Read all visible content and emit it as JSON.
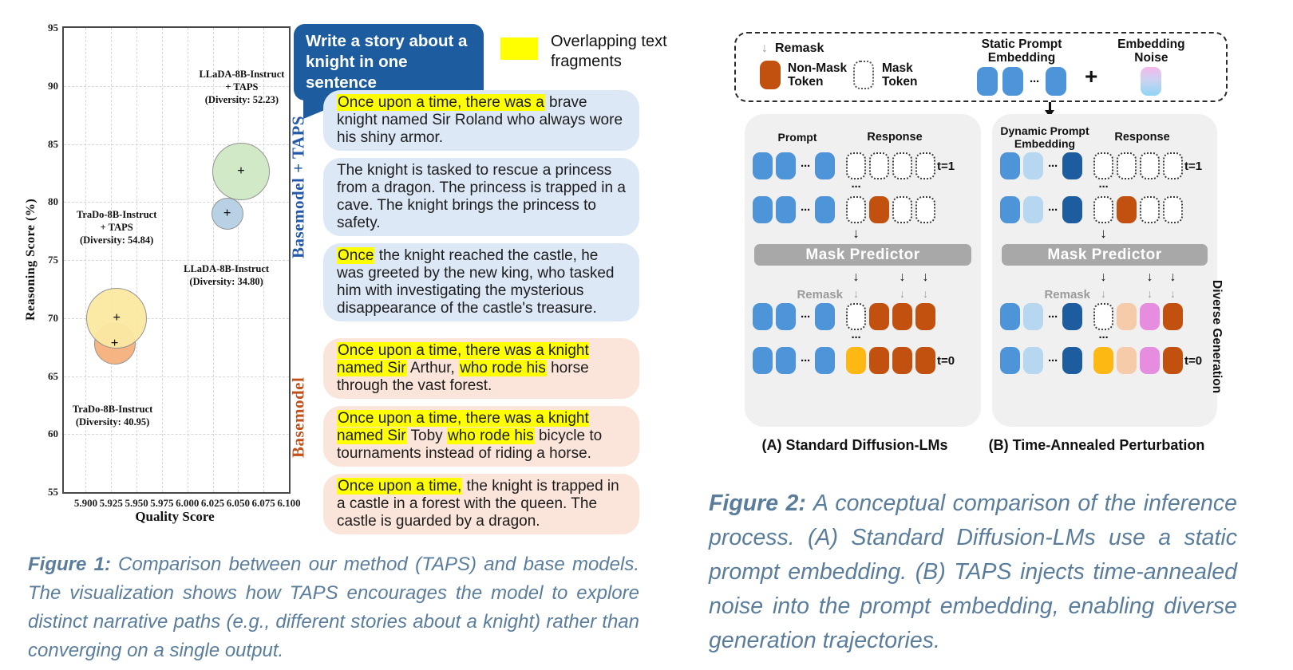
{
  "chart_data": {
    "type": "scatter",
    "title": "",
    "xlabel": "Quality Score",
    "ylabel": "Reasoning Score (%)",
    "xlim": [
      5.8784,
      6.1
    ],
    "ylim": [
      55,
      95
    ],
    "xticks": [
      "5.900",
      "5.925",
      "5.950",
      "5.975",
      "6.000",
      "6.025",
      "6.050",
      "6.075",
      "6.100"
    ],
    "yticks": [
      "55",
      "60",
      "65",
      "70",
      "75",
      "80",
      "85",
      "90",
      "95"
    ],
    "grid": true,
    "marker": "+",
    "points": [
      {
        "name": "TraDo-8B-Instruct",
        "x": 5.9284,
        "y": 67.8,
        "diversity": 40.95,
        "radius_px": 25,
        "fill": "#f5b07c",
        "label": [
          "TraDo-8B-Instruct",
          "(Diversity: 40.95)"
        ],
        "label_at": [
          5.9264,
          61.6
        ]
      },
      {
        "name": "TraDo-8B-Instruct + TAPS",
        "x": 5.9304,
        "y": 70.0,
        "diversity": 54.84,
        "radius_px": 37,
        "fill": "#fbe9a2",
        "label": [
          "TraDo-8B-Instruct",
          "+ TAPS",
          "(Diversity: 54.84)"
        ],
        "label_at": [
          5.9304,
          77.8
        ]
      },
      {
        "name": "LLaDA-8B-Instruct",
        "x": 6.0392,
        "y": 79.0,
        "diversity": 34.8,
        "radius_px": 19,
        "fill": "#b6cfe4",
        "label": [
          "LLaDA-8B-Instruct",
          "(Diversity: 34.80)"
        ],
        "label_at": [
          6.0384,
          73.7
        ]
      },
      {
        "name": "LLaDA-8B-Instruct + TAPS",
        "x": 6.0528,
        "y": 82.6,
        "diversity": 52.23,
        "radius_px": 35,
        "fill": "#cfe8c3",
        "label": [
          "LLaDA-8B-Instruct",
          "+ TAPS",
          "(Diversity: 52.23)"
        ],
        "label_at": [
          6.0536,
          89.9
        ]
      }
    ]
  },
  "figure1": {
    "prompt_bubble": "Write a story about a knight in one sentence",
    "prompt_bubble_color": "#1d5c9e",
    "highlight_legend": "Overlapping text fragments",
    "highlight_color": "#ffff00",
    "groups": [
      {
        "label": "Basemodel + TAPS",
        "label_color": "#2458a8",
        "bubble_bg": "#dce8f6",
        "bubbles": [
          {
            "segments": [
              {
                "text": "Once upon a time, there was a",
                "hl": true
              },
              {
                "text": " brave knight named Sir Roland who always wore his shiny armor.",
                "hl": false
              }
            ]
          },
          {
            "segments": [
              {
                "text": "The knight is tasked to rescue a princess from a dragon. The princess is trapped in a cave. The knight brings the princess to safety.",
                "hl": false
              }
            ]
          },
          {
            "segments": [
              {
                "text": "Once",
                "hl": true
              },
              {
                "text": " the knight reached the castle, he was greeted by the new king, who tasked him with investigating the mysterious disappearance of the castle's treasure.",
                "hl": false
              }
            ]
          }
        ]
      },
      {
        "label": "Basemodel",
        "label_color": "#c0511b",
        "bubble_bg": "#fbe4d9",
        "bubbles": [
          {
            "segments": [
              {
                "text": "Once upon a time, there was a knight named Sir",
                "hl": true
              },
              {
                "text": " Arthur, ",
                "hl": false
              },
              {
                "text": "who rode his",
                "hl": true
              },
              {
                "text": " horse through the vast forest.",
                "hl": false
              }
            ]
          },
          {
            "segments": [
              {
                "text": "Once upon a time, there was a knight named Sir",
                "hl": true
              },
              {
                "text": " Toby ",
                "hl": false
              },
              {
                "text": "who rode his",
                "hl": true
              },
              {
                "text": " bicycle to tournaments instead of riding a horse.",
                "hl": false
              }
            ]
          },
          {
            "segments": [
              {
                "text": "Once upon a time,",
                "hl": true
              },
              {
                "text": " the knight is trapped in a castle in a forest with the queen. The castle is guarded by a dragon.",
                "hl": false
              }
            ]
          }
        ]
      }
    ],
    "caption_label": "Figure 1:",
    "caption_text": "Comparison between our method (TAPS) and base models. The visualization shows how TAPS encourages the model to explore distinct narrative paths (e.g., different stories about a knight) rather than converging on a single output."
  },
  "figure2": {
    "glyphs": {
      "dots": "···",
      "arrow_down": "↓",
      "plus": "+"
    },
    "token_colors": {
      "b": "#4d94d8",
      "lb": "#b7d6f0",
      "db": "#1d5c9e",
      "o": "#c2510f",
      "g": "#a7d998",
      "y": "#fdb813",
      "p": "#e78ddf",
      "pe": "#f5cbaa"
    },
    "legend": {
      "remask": "Remask",
      "non_mask": "Non-Mask Token",
      "mask": "Mask Token",
      "static_prompt": "Static Prompt Embedding",
      "plus": "+",
      "embedding_noise": "Embedding Noise"
    },
    "side_label": "Diverse Generation",
    "panels": [
      {
        "title": "(A) Standard Diffusion-LMs",
        "col1": "Prompt",
        "col2": "Response",
        "prompt": [
          "b",
          "b",
          "dots",
          "b"
        ],
        "rows_top": [
          {
            "response": [
              "m",
              "m",
              "m",
              "m"
            ],
            "t": "t=1"
          },
          {
            "response": [
              "m",
              "o",
              "m",
              "m"
            ]
          }
        ],
        "predictor": "Mask Predictor",
        "outputs": {
          "0": "g",
          "2": "o",
          "3": "o"
        },
        "remask": "Remask",
        "rows_bottom": [
          {
            "response": [
              "m",
              "o",
              "o",
              "o"
            ]
          },
          {
            "response": [
              "y",
              "o",
              "o",
              "o"
            ],
            "t": "t=0"
          }
        ]
      },
      {
        "title": "(B) Time-Annealed Perturbation",
        "col1": "Dynamic Prompt Embedding",
        "col2": "Response",
        "prompt": [
          "b",
          "lb",
          "dots",
          "db"
        ],
        "rows_top": [
          {
            "response": [
              "m",
              "m",
              "m",
              "m"
            ],
            "t": "t=1"
          },
          {
            "response": [
              "m",
              "o",
              "m",
              "m"
            ]
          }
        ],
        "predictor": "Mask Predictor",
        "outputs": {
          "0": "g",
          "2": "p",
          "3": "o"
        },
        "remask": "Remask",
        "rows_bottom": [
          {
            "response": [
              "m",
              "pe",
              "p",
              "o"
            ]
          },
          {
            "response": [
              "y",
              "pe",
              "p",
              "o"
            ],
            "t": "t=0"
          }
        ]
      }
    ],
    "caption_label": "Figure 2:",
    "caption_text": "A conceptual comparison of the inference process. (A) Standard Diffusion-LMs use a static prompt embedding. (B) TAPS injects time-annealed noise into the prompt embedding, enabling diverse generation trajectories."
  }
}
